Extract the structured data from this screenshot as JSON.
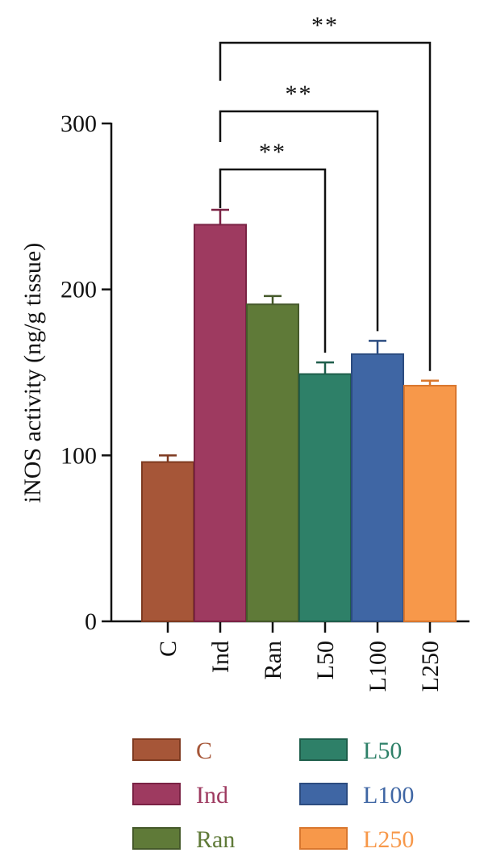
{
  "chart_data": {
    "type": "bar",
    "ylabel": "iNOS activity (ng/g tissue)",
    "xlabel": "",
    "ylim": [
      0,
      300
    ],
    "yticks": [
      0,
      100,
      200,
      300
    ],
    "categories": [
      "C",
      "Ind",
      "Ran",
      "L50",
      "L100",
      "L250"
    ],
    "values": [
      96,
      239,
      191,
      149,
      161,
      142
    ],
    "errors": [
      4,
      9,
      5,
      7,
      8,
      3
    ],
    "colors": [
      "#a65638",
      "#9e3a60",
      "#5f7a38",
      "#2e8068",
      "#3f66a4",
      "#f7984a"
    ],
    "edge_colors": [
      "#7e3a20",
      "#7a2244",
      "#45592a",
      "#1f5e4b",
      "#2c4c80",
      "#d9772e"
    ],
    "legend": {
      "placement": "bottom",
      "entries": [
        "C",
        "Ind",
        "Ran",
        "L50",
        "L100",
        "L250"
      ]
    },
    "significance": [
      {
        "from": "Ind",
        "to": "L50",
        "label": "**"
      },
      {
        "from": "Ind",
        "to": "L100",
        "label": "**"
      },
      {
        "from": "Ind",
        "to": "L250",
        "label": "**"
      }
    ]
  }
}
